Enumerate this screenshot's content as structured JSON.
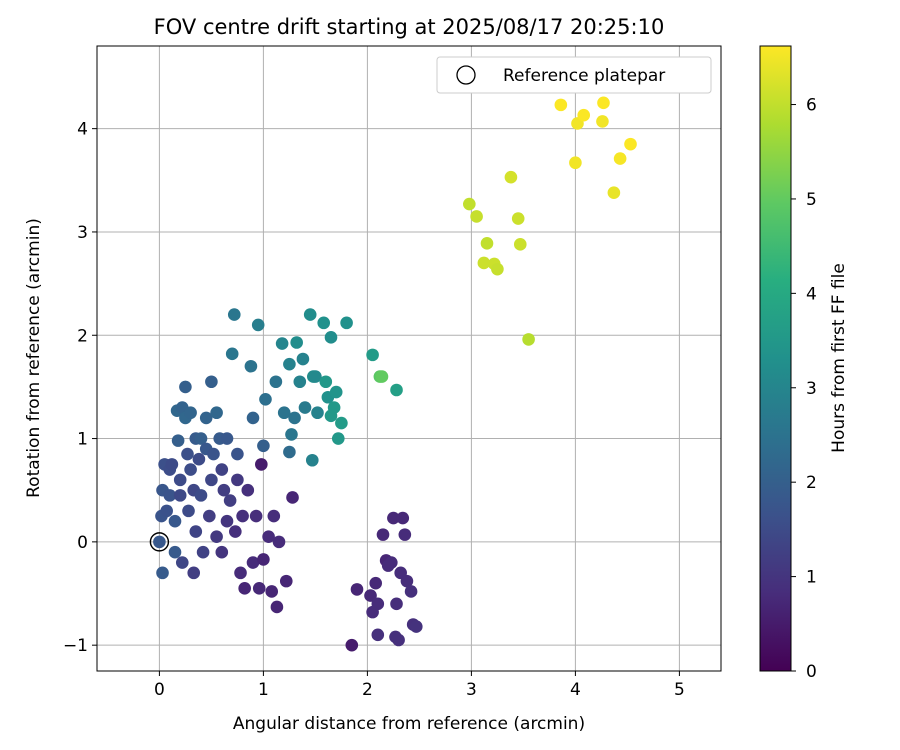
{
  "chart_data": {
    "type": "scatter",
    "title": "FOV centre drift starting at 2025/08/17 20:25:10",
    "xlabel": "Angular distance from reference (arcmin)",
    "ylabel": "Rotation from reference (arcmin)",
    "xlim": [
      -0.6,
      5.4
    ],
    "ylim": [
      -1.25,
      4.8
    ],
    "xticks": [
      "0",
      "1",
      "2",
      "3",
      "4",
      "5"
    ],
    "yticks": [
      "−1",
      "0",
      "1",
      "2",
      "3",
      "4"
    ],
    "grid": true,
    "legend": {
      "placement": "upper-right",
      "entries": [
        {
          "label": "Reference platepar",
          "marker": "open-circle"
        }
      ]
    },
    "colorbar": {
      "label": "Hours from first FF file",
      "range": [
        0,
        6.62
      ],
      "ticks": [
        "0",
        "1",
        "2",
        "3",
        "4",
        "5",
        "6"
      ],
      "colormap": "viridis"
    },
    "reference_point": {
      "x": 0,
      "y": 0
    },
    "points": [
      [
        0.0,
        0.0,
        1.8
      ],
      [
        0.03,
        -0.3,
        1.9
      ],
      [
        0.02,
        0.25,
        1.7
      ],
      [
        0.03,
        0.5,
        1.75
      ],
      [
        0.05,
        0.75,
        1.6
      ],
      [
        0.07,
        0.3,
        1.65
      ],
      [
        0.1,
        0.7,
        1.55
      ],
      [
        0.1,
        0.45,
        1.7
      ],
      [
        0.12,
        0.75,
        1.5
      ],
      [
        0.15,
        0.2,
        1.8
      ],
      [
        0.15,
        -0.1,
        1.85
      ],
      [
        0.17,
        1.27,
        2.2
      ],
      [
        0.18,
        0.98,
        2.0
      ],
      [
        0.2,
        0.6,
        1.5
      ],
      [
        0.2,
        0.45,
        1.45
      ],
      [
        0.22,
        1.3,
        2.1
      ],
      [
        0.22,
        -0.2,
        1.4
      ],
      [
        0.25,
        1.5,
        2.0
      ],
      [
        0.25,
        1.2,
        2.2
      ],
      [
        0.27,
        0.85,
        1.6
      ],
      [
        0.28,
        0.3,
        1.5
      ],
      [
        0.3,
        0.7,
        1.55
      ],
      [
        0.3,
        1.25,
        2.15
      ],
      [
        0.33,
        0.5,
        1.4
      ],
      [
        0.33,
        -0.3,
        1.2
      ],
      [
        0.35,
        1.0,
        1.9
      ],
      [
        0.35,
        0.1,
        1.35
      ],
      [
        0.38,
        0.8,
        1.5
      ],
      [
        0.4,
        1.0,
        2.0
      ],
      [
        0.4,
        0.45,
        1.5
      ],
      [
        0.42,
        -0.1,
        1.3
      ],
      [
        0.45,
        1.2,
        2.1
      ],
      [
        0.45,
        0.9,
        1.8
      ],
      [
        0.48,
        0.25,
        1.2
      ],
      [
        0.5,
        0.6,
        1.4
      ],
      [
        0.5,
        1.55,
        2.0
      ],
      [
        0.52,
        0.85,
        1.7
      ],
      [
        0.55,
        1.25,
        2.2
      ],
      [
        0.55,
        0.05,
        1.1
      ],
      [
        0.58,
        1.0,
        1.9
      ],
      [
        0.6,
        0.7,
        1.3
      ],
      [
        0.6,
        -0.1,
        1.0
      ],
      [
        0.62,
        0.5,
        1.2
      ],
      [
        0.65,
        0.2,
        1.0
      ],
      [
        0.65,
        1.0,
        1.8
      ],
      [
        0.68,
        0.4,
        1.2
      ],
      [
        0.7,
        1.82,
        2.6
      ],
      [
        0.72,
        2.2,
        2.6
      ],
      [
        0.73,
        0.1,
        0.9
      ],
      [
        0.75,
        0.6,
        1.1
      ],
      [
        0.75,
        0.85,
        1.7
      ],
      [
        0.78,
        -0.3,
        0.8
      ],
      [
        0.8,
        0.25,
        0.9
      ],
      [
        0.82,
        -0.45,
        0.7
      ],
      [
        0.85,
        0.5,
        0.9
      ],
      [
        0.88,
        1.7,
        2.5
      ],
      [
        0.9,
        1.2,
        2.1
      ],
      [
        0.9,
        -0.2,
        0.8
      ],
      [
        0.93,
        0.25,
        0.85
      ],
      [
        0.95,
        2.1,
        2.8
      ],
      [
        0.96,
        -0.45,
        0.75
      ],
      [
        0.98,
        0.75,
        0.5
      ],
      [
        1.0,
        0.93,
        2.0
      ],
      [
        1.0,
        -0.17,
        0.7
      ],
      [
        1.02,
        1.38,
        2.4
      ],
      [
        1.05,
        0.05,
        0.8
      ],
      [
        1.08,
        -0.48,
        0.7
      ],
      [
        1.1,
        0.25,
        0.85
      ],
      [
        1.12,
        1.55,
        2.5
      ],
      [
        1.13,
        -0.63,
        0.7
      ],
      [
        1.15,
        0.0,
        0.8
      ],
      [
        1.18,
        1.92,
        3.0
      ],
      [
        1.2,
        1.25,
        2.5
      ],
      [
        1.22,
        -0.38,
        0.7
      ],
      [
        1.25,
        0.87,
        2.3
      ],
      [
        1.25,
        1.72,
        2.9
      ],
      [
        1.27,
        1.04,
        2.6
      ],
      [
        1.28,
        0.43,
        0.7
      ],
      [
        1.3,
        1.2,
        2.5
      ],
      [
        1.32,
        1.93,
        3.2
      ],
      [
        1.35,
        1.55,
        2.9
      ],
      [
        1.38,
        1.77,
        2.9
      ],
      [
        1.4,
        1.3,
        2.7
      ],
      [
        1.45,
        2.2,
        3.2
      ],
      [
        1.47,
        0.79,
        2.9
      ],
      [
        1.48,
        1.6,
        3.2
      ],
      [
        1.5,
        1.6,
        3.1
      ],
      [
        1.52,
        1.25,
        2.9
      ],
      [
        1.58,
        2.12,
        3.3
      ],
      [
        1.6,
        1.55,
        3.5
      ],
      [
        1.62,
        1.4,
        3.3
      ],
      [
        1.65,
        1.22,
        3.5
      ],
      [
        1.65,
        1.98,
        3.2
      ],
      [
        1.68,
        1.3,
        3.5
      ],
      [
        1.7,
        1.45,
        3.4
      ],
      [
        1.72,
        1.0,
        3.5
      ],
      [
        1.75,
        1.15,
        3.6
      ],
      [
        1.8,
        2.12,
        3.3
      ],
      [
        1.85,
        -1.0,
        0.5
      ],
      [
        1.9,
        -0.46,
        0.7
      ],
      [
        2.03,
        -0.52,
        0.75
      ],
      [
        2.05,
        1.81,
        3.6
      ],
      [
        2.05,
        -0.68,
        0.8
      ],
      [
        2.08,
        -0.4,
        0.75
      ],
      [
        2.1,
        -0.6,
        0.8
      ],
      [
        2.1,
        -0.9,
        0.9
      ],
      [
        2.12,
        1.6,
        4.9
      ],
      [
        2.14,
        1.6,
        5.0
      ],
      [
        2.15,
        0.07,
        0.75
      ],
      [
        2.18,
        -0.18,
        0.7
      ],
      [
        2.2,
        -0.23,
        0.8
      ],
      [
        2.23,
        -0.2,
        0.8
      ],
      [
        2.25,
        0.23,
        0.75
      ],
      [
        2.27,
        -0.92,
        0.9
      ],
      [
        2.28,
        -0.6,
        0.85
      ],
      [
        2.28,
        1.47,
        3.7
      ],
      [
        2.3,
        -0.95,
        0.9
      ],
      [
        2.32,
        -0.3,
        0.85
      ],
      [
        2.34,
        0.23,
        0.75
      ],
      [
        2.36,
        0.07,
        0.8
      ],
      [
        2.38,
        -0.38,
        0.85
      ],
      [
        2.42,
        -0.48,
        0.9
      ],
      [
        2.44,
        -0.8,
        0.9
      ],
      [
        2.47,
        -0.82,
        0.95
      ],
      [
        2.98,
        3.27,
        6.0
      ],
      [
        3.05,
        3.15,
        6.05
      ],
      [
        3.12,
        2.7,
        6.1
      ],
      [
        3.15,
        2.89,
        6.0
      ],
      [
        3.22,
        2.69,
        6.1
      ],
      [
        3.25,
        2.64,
        6.05
      ],
      [
        3.38,
        3.53,
        6.2
      ],
      [
        3.45,
        3.13,
        6.1
      ],
      [
        3.47,
        2.88,
        6.1
      ],
      [
        3.55,
        1.96,
        5.9
      ],
      [
        3.86,
        4.23,
        6.6
      ],
      [
        4.0,
        3.67,
        6.5
      ],
      [
        4.02,
        4.05,
        6.5
      ],
      [
        4.08,
        4.13,
        6.6
      ],
      [
        4.26,
        4.07,
        6.5
      ],
      [
        4.27,
        4.25,
        6.6
      ],
      [
        4.37,
        3.38,
        6.4
      ],
      [
        4.43,
        3.71,
        6.55
      ],
      [
        4.53,
        3.85,
        6.6
      ]
    ]
  }
}
